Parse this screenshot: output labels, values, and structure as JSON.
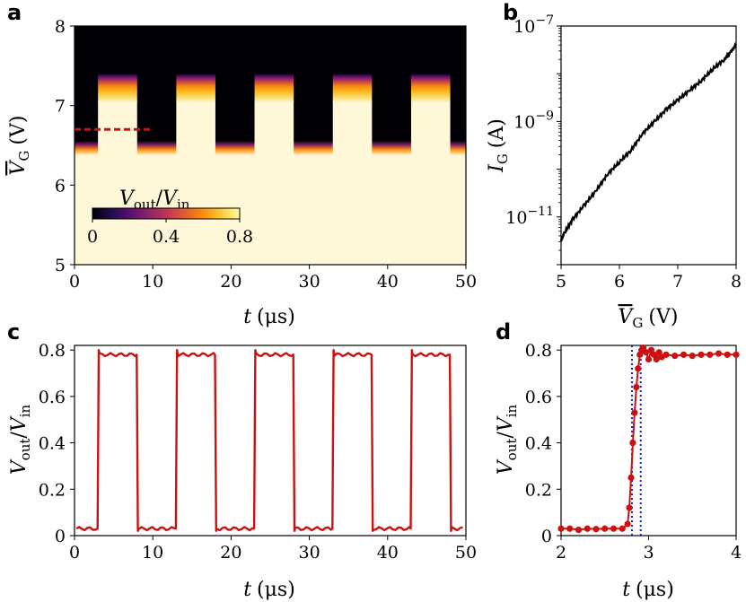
{
  "colors": {
    "series": "#cc1111",
    "trace": "#000000",
    "dashed_marker": "#cc1111",
    "vline": "#1020c8",
    "cmap": [
      "#000004",
      "#1f0c48",
      "#550f6d",
      "#88226a",
      "#ba3655",
      "#e35933",
      "#f98c0a",
      "#f9c932",
      "#fcffa4",
      "#fff8d8"
    ]
  },
  "chart_data": [
    {
      "panel": "a",
      "type": "heatmap",
      "xlabel": "t (μs)",
      "ylabel": "V̄G (V)",
      "xlim": [
        0,
        50
      ],
      "ylim": [
        5,
        8
      ],
      "xticks": [
        "0",
        "10",
        "20",
        "30",
        "40",
        "50"
      ],
      "yticks": [
        "5",
        "6",
        "7",
        "8"
      ],
      "pulse_period_us": 10,
      "pulses_on": [
        [
          3,
          8
        ],
        [
          13,
          18
        ],
        [
          23,
          28
        ],
        [
          33,
          38
        ],
        [
          43,
          48
        ]
      ],
      "threshold_off_V": 6.4,
      "threshold_on_V": 7.2,
      "high_value": 0.8,
      "dashed_marker": {
        "V": 6.7,
        "x_range": [
          0,
          10
        ]
      },
      "colorbar": {
        "label": "Vout/Vin",
        "range": [
          0,
          0.8
        ],
        "ticks": [
          "0",
          "0.4",
          "0.8"
        ]
      }
    },
    {
      "panel": "b",
      "type": "line",
      "xlabel": "V̄G (V)",
      "ylabel": "IG (A)",
      "xlim": [
        5,
        8
      ],
      "ylim_log": [
        -12,
        -7
      ],
      "xticks": [
        "5",
        "6",
        "7",
        "8"
      ],
      "yticks": [
        {
          "base": "10",
          "exp": "−7",
          "v": -7
        },
        {
          "base": "10",
          "exp": "−9",
          "v": -9
        },
        {
          "base": "10",
          "exp": "−11",
          "v": -11
        }
      ],
      "x": [
        5.0,
        5.05,
        5.2,
        5.4,
        5.6,
        5.8,
        6.0,
        6.2,
        6.4,
        6.6,
        6.8,
        7.0,
        7.2,
        7.4,
        7.6,
        7.8,
        7.9,
        8.0
      ],
      "log10_y": [
        -11.5,
        -11.35,
        -11.05,
        -10.75,
        -10.45,
        -10.1,
        -9.85,
        -9.6,
        -9.25,
        -9.0,
        -8.75,
        -8.55,
        -8.35,
        -8.15,
        -7.9,
        -7.7,
        -7.55,
        -7.4
      ]
    },
    {
      "panel": "c",
      "type": "line",
      "xlabel": "t (μs)",
      "ylabel": "Vout/Vin",
      "xlim": [
        0,
        50
      ],
      "ylim": [
        0,
        0.82
      ],
      "xticks": [
        "0",
        "10",
        "20",
        "30",
        "40",
        "50"
      ],
      "yticks": [
        "0",
        "0.2",
        "0.4",
        "0.6",
        "0.8"
      ],
      "low": 0.03,
      "high": 0.78,
      "edges_up": [
        3,
        13,
        23,
        33,
        43
      ],
      "edges_down": [
        8,
        18,
        28,
        38,
        48
      ]
    },
    {
      "panel": "d",
      "type": "scatter",
      "xlabel": "t (μs)",
      "ylabel": "Vout/Vin",
      "xlim": [
        2,
        4
      ],
      "ylim": [
        0,
        0.82
      ],
      "xticks": [
        "2",
        "3",
        "4"
      ],
      "yticks": [
        "0",
        "0.2",
        "0.4",
        "0.6",
        "0.8"
      ],
      "vlines": [
        2.81,
        2.91
      ],
      "x": [
        2.0,
        2.1,
        2.2,
        2.3,
        2.4,
        2.5,
        2.6,
        2.7,
        2.76,
        2.78,
        2.8,
        2.82,
        2.84,
        2.86,
        2.88,
        2.9,
        2.92,
        2.94,
        2.97,
        3.0,
        3.03,
        3.06,
        3.09,
        3.12,
        3.15,
        3.2,
        3.3,
        3.4,
        3.5,
        3.6,
        3.7,
        3.8,
        3.9,
        4.0
      ],
      "y": [
        0.03,
        0.03,
        0.025,
        0.03,
        0.028,
        0.03,
        0.03,
        0.03,
        0.05,
        0.12,
        0.25,
        0.4,
        0.53,
        0.64,
        0.72,
        0.78,
        0.8,
        0.81,
        0.79,
        0.76,
        0.8,
        0.78,
        0.76,
        0.79,
        0.77,
        0.78,
        0.775,
        0.78,
        0.775,
        0.78,
        0.78,
        0.785,
        0.78,
        0.78
      ]
    }
  ],
  "labels": {
    "panel_a": "a",
    "panel_b": "b",
    "panel_c": "c",
    "panel_d": "d",
    "t_axis": "t",
    "t_unit": "(μs)",
    "vg_sym": "V",
    "vg_sub": "G",
    "vg_unit": "(V)",
    "ig_sym": "I",
    "ig_sub": "G",
    "ig_unit": "(A)",
    "vout": "V",
    "vout_sub": "out",
    "slash": "/",
    "vin": "V",
    "vin_sub": "in"
  }
}
